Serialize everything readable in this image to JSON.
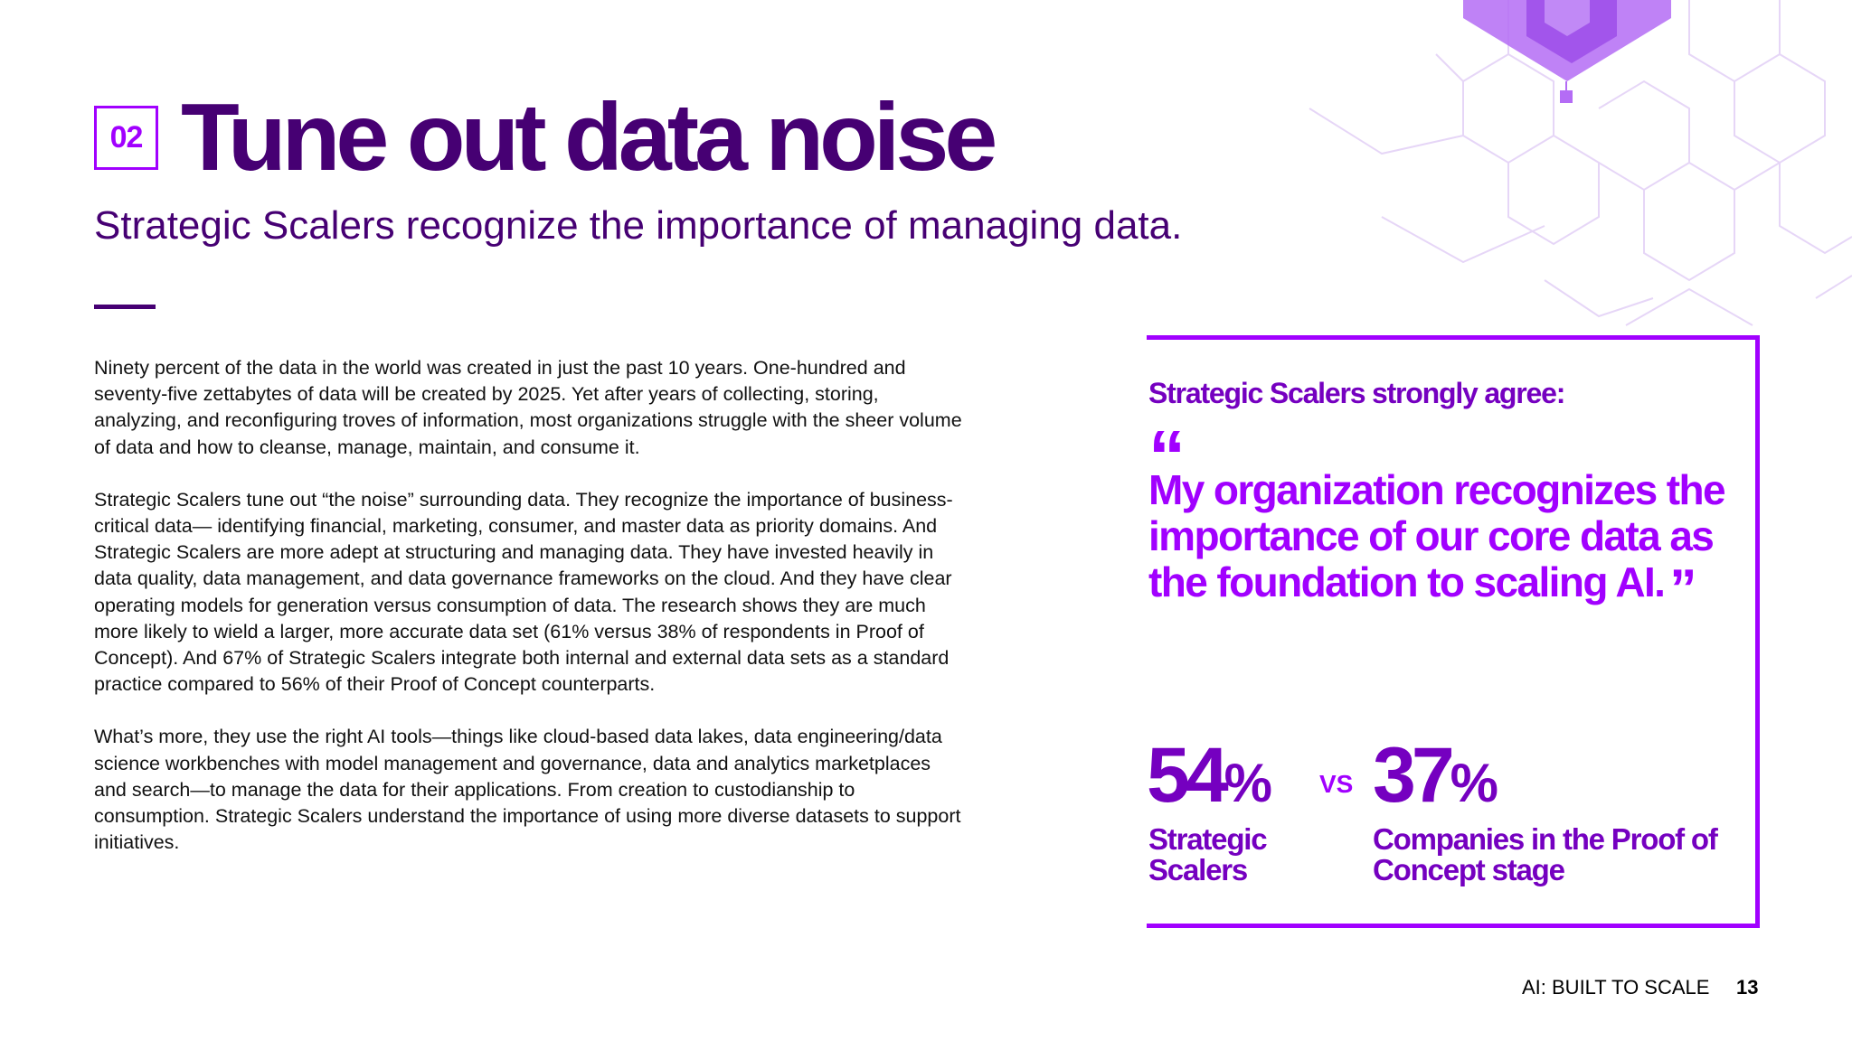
{
  "header": {
    "section_number": "02",
    "title": "Tune out data noise",
    "subtitle": "Strategic Scalers recognize the importance of managing data."
  },
  "body": {
    "paragraphs": [
      "Ninety percent of the data in the world was created in just the past 10 years. One-hundred and seventy-five zettabytes of data will be created by 2025. Yet after years of collecting, storing, analyzing, and reconfiguring troves of information, most organizations struggle with the sheer volume of data and how to cleanse, manage, maintain, and consume it.",
      "Strategic Scalers tune out “the noise” surrounding data. They recognize the importance of business-critical data— identifying financial, marketing, consumer, and master data as priority domains. And Strategic Scalers are more adept at structuring and managing data. They have invested heavily in data quality, data management, and data governance frameworks on the cloud. And they have clear operating models for generation versus consumption of data. The research shows they are much more likely to wield a larger, more accurate data set (61% versus 38% of respondents in Proof of Concept). And 67% of Strategic Scalers integrate both internal and external data sets as a standard practice compared to 56% of their Proof of Concept counterparts.",
      "What’s more, they use the right AI tools—things like cloud-based data lakes, data engineering/data science workbenches with model management and governance, data and analytics marketplaces and search—to manage the data for their applications. From creation to custodianship to consumption. Strategic Scalers understand the importance of using more diverse datasets to support initiatives."
    ]
  },
  "callout": {
    "heading": "Strategic Scalers strongly agree:",
    "quote_open": "“",
    "quote": "My organization recognizes the importance of our core data as the foundation to scaling AI.",
    "quote_close": "”",
    "stat_a_value": "54",
    "stat_a_unit": "%",
    "stat_a_label": "Strategic Scalers",
    "vs": "VS",
    "stat_b_value": "37",
    "stat_b_unit": "%",
    "stat_b_label": "Companies in the Proof of Concept stage"
  },
  "footer": {
    "title": "AI: BUILT TO SCALE",
    "page_number": "13"
  },
  "colors": {
    "dark_purple": "#460073",
    "accent_purple": "#a100ff",
    "mid_purple": "#7500c0"
  }
}
